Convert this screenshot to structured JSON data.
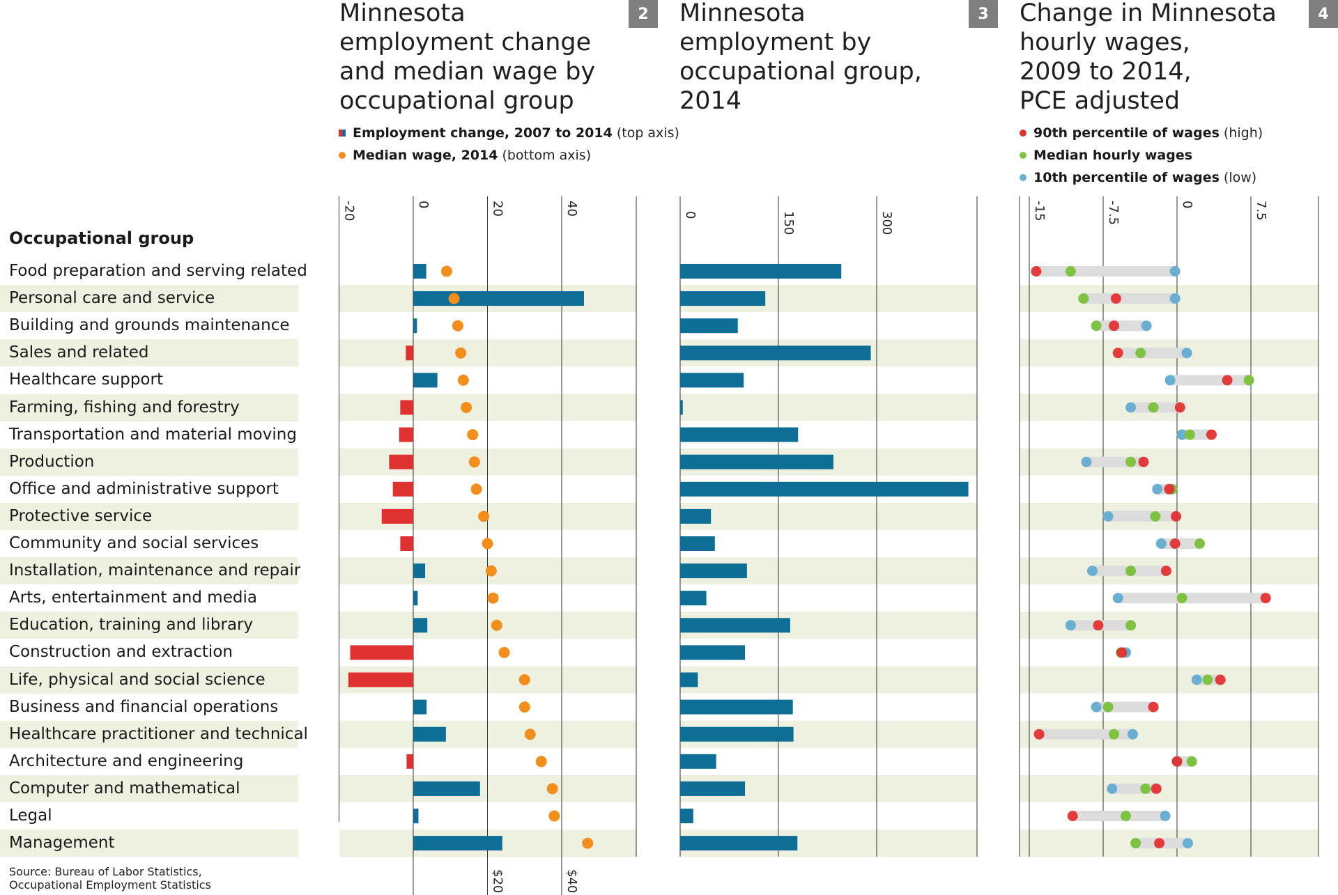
{
  "row_header": "Occupational group",
  "source": [
    "Source: Bureau of Labor Statistics,",
    "Occupational Employment Statistics"
  ],
  "colors": {
    "positive": "#0f6e96",
    "negative": "#e03131",
    "median_wage": "#f28e1c",
    "high": "#e03131",
    "median": "#7fc241",
    "low": "#6aafd2",
    "band": "#eef1e0"
  },
  "panel2": {
    "number": "2",
    "title": [
      "Minnesota",
      "employment change",
      "and median wage by",
      "occupational group"
    ],
    "legend": [
      {
        "label": "Employment change, 2007 to 2014",
        "note": "(top axis)",
        "icon": "split-square-icon"
      },
      {
        "label": "Median wage, 2014",
        "note": "(bottom axis)",
        "color": "#f28e1c",
        "icon": "dot-icon"
      }
    ]
  },
  "panel3": {
    "number": "3",
    "title": [
      "Minnesota",
      "employment by",
      "occupational group,",
      "2014"
    ]
  },
  "panel4": {
    "number": "4",
    "title": [
      "Change in Minnesota",
      "hourly wages,",
      "2009 to 2014,",
      "PCE adjusted"
    ],
    "legend": [
      {
        "label": "90th percentile of wages",
        "note": "(high)",
        "color": "#e03131"
      },
      {
        "label": "Median hourly wages",
        "note": "",
        "color": "#7fc241"
      },
      {
        "label": "10th percentile of wages",
        "note": "(low)",
        "color": "#6aafd2"
      }
    ]
  },
  "chart_data": [
    {
      "type": "bar",
      "title": "Employment change, 2007 to 2014",
      "top_axis_ticks": [
        "-20",
        "0",
        "20",
        "40"
      ],
      "xlim": [
        -20,
        60
      ],
      "categories": [
        "Food preparation and serving related",
        "Personal care and service",
        "Building and grounds maintenance",
        "Sales and related",
        "Healthcare support",
        "Farming, fishing and forestry",
        "Transportation and material moving",
        "Production",
        "Office and administrative support",
        "Protective service",
        "Community and social services",
        "Installation, maintenance and repair",
        "Arts, entertainment and media",
        "Education, training and library",
        "Construction and extraction",
        "Life, physical and social science",
        "Business and financial operations",
        "Healthcare practitioner and technical",
        "Architecture and engineering",
        "Computer and mathematical",
        "Legal",
        "Management"
      ],
      "values": [
        3.5,
        46,
        1,
        -2,
        6.5,
        -3.5,
        -3.8,
        -6.5,
        -5.5,
        -8.5,
        -3.5,
        3.2,
        1.2,
        3.8,
        -17,
        -17.5,
        3.6,
        8.8,
        -1.8,
        18,
        1.4,
        24
      ]
    },
    {
      "type": "scatter",
      "title": "Median wage, 2014",
      "bottom_axis_ticks": [
        "$20",
        "$40"
      ],
      "xlim": [
        -20,
        60
      ],
      "categories": [
        "Food preparation and serving related",
        "Personal care and service",
        "Building and grounds maintenance",
        "Sales and related",
        "Healthcare support",
        "Farming, fishing and forestry",
        "Transportation and material moving",
        "Production",
        "Office and administrative support",
        "Protective service",
        "Community and social services",
        "Installation, maintenance and repair",
        "Arts, entertainment and media",
        "Education, training and library",
        "Construction and extraction",
        "Life, physical and social science",
        "Business and financial operations",
        "Healthcare practitioner and technical",
        "Architecture and engineering",
        "Computer and mathematical",
        "Legal",
        "Management"
      ],
      "values": [
        9,
        11,
        12,
        12.8,
        13.5,
        14.3,
        16,
        16.5,
        17,
        19,
        20,
        21,
        21.5,
        22.5,
        24.5,
        30,
        30,
        31.5,
        34.5,
        37.5,
        38,
        47
      ]
    },
    {
      "type": "bar",
      "title": "Minnesota employment by occupational group, 2014",
      "x_ticks": [
        "0",
        "150",
        "300"
      ],
      "xlim": [
        0,
        450
      ],
      "categories": [
        "Food preparation and serving related",
        "Personal care and service",
        "Building and grounds maintenance",
        "Sales and related",
        "Healthcare support",
        "Farming, fishing and forestry",
        "Transportation and material moving",
        "Production",
        "Office and administrative support",
        "Protective service",
        "Community and social services",
        "Installation, maintenance and repair",
        "Arts, entertainment and media",
        "Education, training and library",
        "Construction and extraction",
        "Life, physical and social science",
        "Business and financial operations",
        "Healthcare practitioner and technical",
        "Architecture and engineering",
        "Computer and mathematical",
        "Legal",
        "Management"
      ],
      "values": [
        246,
        130,
        88,
        291,
        97,
        4,
        180,
        234,
        440,
        47,
        53,
        102,
        40,
        168,
        99,
        27,
        172,
        173,
        55,
        99,
        20,
        179
      ]
    },
    {
      "type": "scatter",
      "title": "Change in Minnesota hourly wages, 2009 to 2014, PCE adjusted",
      "x_ticks": [
        "-15",
        "-7.5",
        "0",
        "7.5"
      ],
      "xlim": [
        -16,
        14.5
      ],
      "categories": [
        "Food preparation and serving related",
        "Personal care and service",
        "Building and grounds maintenance",
        "Sales and related",
        "Healthcare support",
        "Farming, fishing and forestry",
        "Transportation and material moving",
        "Production",
        "Office and administrative support",
        "Protective service",
        "Community and social services",
        "Installation, maintenance and repair",
        "Arts, entertainment and media",
        "Education, training and library",
        "Construction and extraction",
        "Life, physical and social science",
        "Business and financial operations",
        "Healthcare practitioner and technical",
        "Architecture and engineering",
        "Computer and mathematical",
        "Legal",
        "Management"
      ],
      "series": [
        {
          "name": "90th percentile of wages",
          "values": [
            -14.3,
            -6.2,
            -6.4,
            -6,
            5.1,
            0.3,
            3.5,
            -3.4,
            -0.8,
            -0.1,
            -0.2,
            -1.1,
            9,
            -8,
            -5.6,
            4.4,
            -2.4,
            -14,
            0,
            -2.1,
            -10.6,
            -1.8
          ]
        },
        {
          "name": "Median hourly wages",
          "values": [
            -10.8,
            -9.5,
            -8.2,
            -3.7,
            7.3,
            -2.4,
            1.3,
            -4.7,
            -0.5,
            -2.2,
            2.3,
            -4.7,
            0.5,
            -4.7,
            -5.7,
            3.1,
            -7,
            -6.4,
            1.5,
            -3.2,
            -5.2,
            -4.2
          ]
        },
        {
          "name": "10th percentile of wages",
          "values": [
            -0.2,
            -0.2,
            -3.1,
            1,
            -0.7,
            -4.7,
            0.5,
            -9.2,
            -2,
            -7,
            -1.6,
            -8.6,
            -6,
            -10.8,
            -5.2,
            2,
            -8.2,
            -4.5,
            0,
            -6.6,
            -1.2,
            1.1
          ]
        }
      ]
    }
  ]
}
